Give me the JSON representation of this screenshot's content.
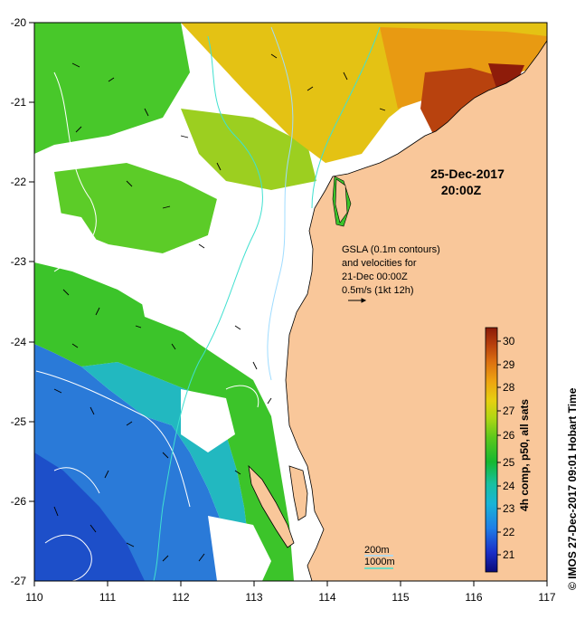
{
  "map": {
    "date_line1": "25-Dec-2017",
    "date_line2": "20:00Z",
    "gsla_lines": [
      "GSLA (0.1m contours)",
      "and velocities for",
      "21-Dec 00:00Z",
      "0.5m/s (1kt 12h)"
    ],
    "bathy_200": "200m",
    "bathy_1000": "1000m",
    "credit": "© IMOS 27-Dec-2017 09:01 Hobart Time",
    "colorbar_title": "4h comp, p50, all sats",
    "colorbar_ticks": [
      "21",
      "22",
      "23",
      "24",
      "25",
      "26",
      "27",
      "28",
      "29",
      "30"
    ],
    "lon_labels": [
      "110",
      "111",
      "112",
      "113",
      "114",
      "115",
      "116",
      "117"
    ],
    "lat_labels": [
      "-20",
      "-21",
      "-22",
      "-23",
      "-24",
      "-25",
      "-26",
      "-27"
    ],
    "land_color": "#f9c79a",
    "no_data_color": "#ffffff",
    "contour_color": "#ffffff",
    "bathy_200_color": "#9fdcff",
    "bathy_1000_color": "#40e0d0"
  }
}
